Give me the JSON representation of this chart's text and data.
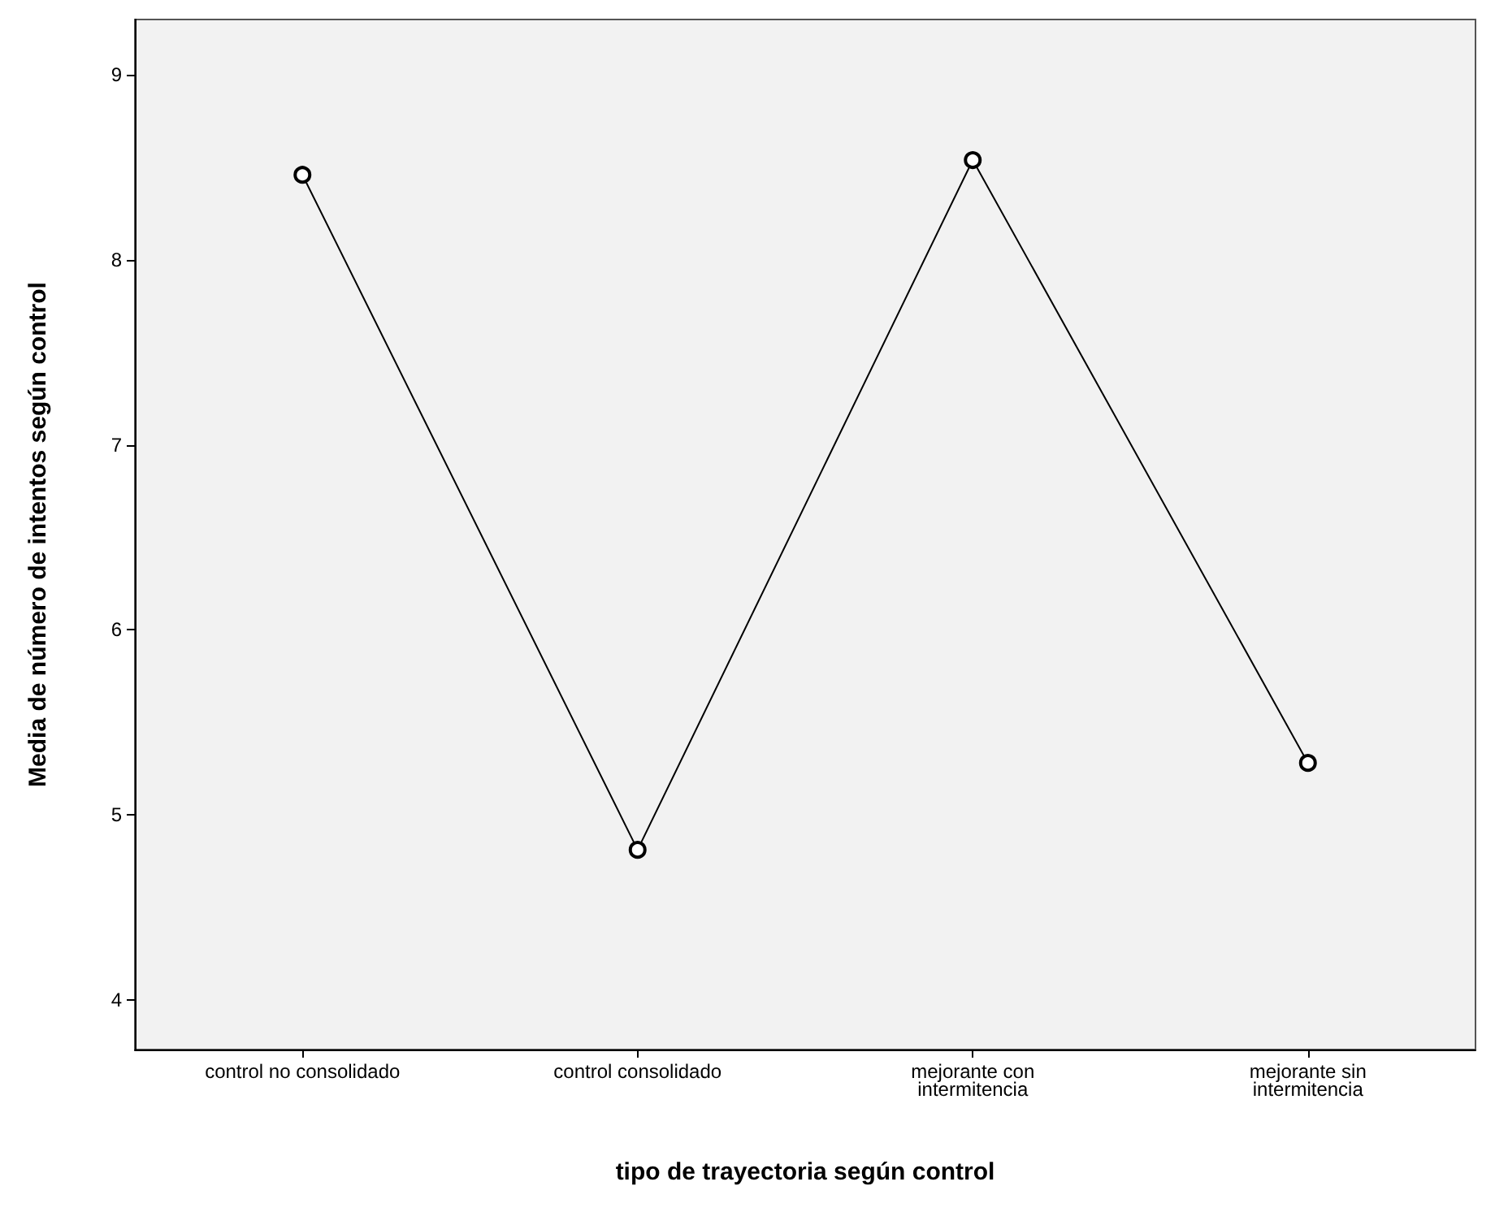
{
  "chart_data": {
    "type": "line",
    "xlabel": "tipo de trayectoria según control",
    "ylabel": "Media de número de intentos según control",
    "categories": [
      "control no consolidado",
      "control consolidado",
      "mejorante con\nintermitencia",
      "mejorante sin\nintermitencia"
    ],
    "series": [
      {
        "color": "#000000",
        "values": [
          8.46,
          4.81,
          8.54,
          5.28
        ]
      }
    ],
    "ylim": [
      3.73,
      9.3
    ],
    "yticks": [
      4,
      5,
      6,
      7,
      8,
      9
    ],
    "grid": false,
    "marker": "circle",
    "line_style": "solid"
  }
}
